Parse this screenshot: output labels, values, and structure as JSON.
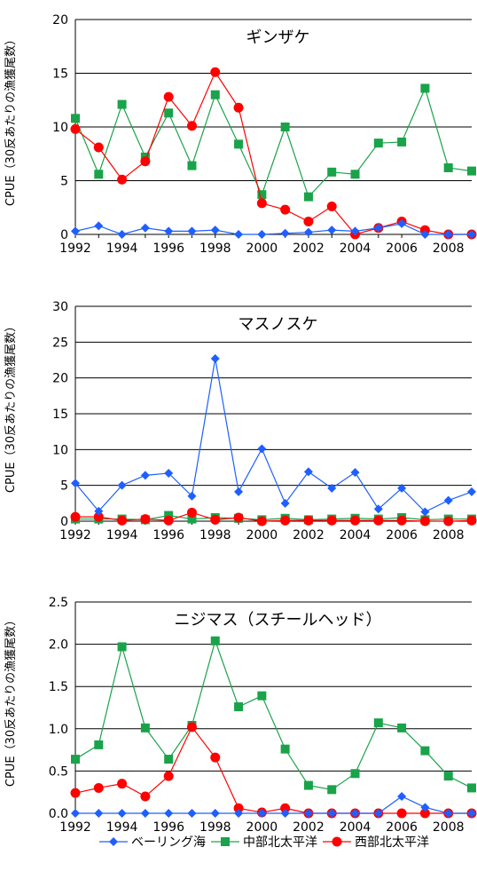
{
  "colors": {
    "bering": "#1f5fff",
    "central": "#1aa34a",
    "western": "#ff0000",
    "grid": "#000000"
  },
  "legend": {
    "items": [
      {
        "label": "ベーリング海",
        "marker": "diamond",
        "series": "bering"
      },
      {
        "label": "中部北太平洋",
        "marker": "square",
        "series": "central"
      },
      {
        "label": "西部北太平洋",
        "marker": "circle",
        "series": "western"
      }
    ]
  },
  "chart_data": [
    {
      "type": "line",
      "title": "ギンザケ",
      "ylabel": "CPUE（30反あたりの漁獲尾数）",
      "x": [
        1992,
        1993,
        1994,
        1995,
        1996,
        1997,
        1998,
        1999,
        2000,
        2001,
        2002,
        2003,
        2004,
        2005,
        2006,
        2007,
        2008,
        2009
      ],
      "xticks": [
        "1992",
        "1994",
        "1996",
        "1998",
        "2000",
        "2002",
        "2004",
        "2006",
        "2008"
      ],
      "ylim": [
        0,
        20
      ],
      "yticks": [
        "0",
        "5",
        "10",
        "15",
        "20"
      ],
      "grid": true,
      "series": [
        {
          "name": "ベーリング海",
          "key": "bering",
          "marker": "diamond",
          "values": [
            0.3,
            0.8,
            0.0,
            0.6,
            0.3,
            0.3,
            0.4,
            0.0,
            0.0,
            0.1,
            0.2,
            0.4,
            0.3,
            0.6,
            1.0,
            0.0,
            0.0,
            0.0
          ]
        },
        {
          "name": "中部北太平洋",
          "key": "central",
          "marker": "square",
          "values": [
            10.8,
            5.6,
            12.1,
            7.2,
            11.3,
            6.4,
            13.0,
            8.4,
            3.7,
            10.0,
            3.5,
            5.8,
            5.6,
            8.5,
            8.6,
            13.6,
            6.2,
            5.9
          ]
        },
        {
          "name": "西部北太平洋",
          "key": "western",
          "marker": "circle",
          "values": [
            9.8,
            8.1,
            5.1,
            6.8,
            12.8,
            10.1,
            15.1,
            11.8,
            2.9,
            2.3,
            1.2,
            2.6,
            0.0,
            0.6,
            1.2,
            0.4,
            0.0,
            0.0
          ]
        }
      ]
    },
    {
      "type": "line",
      "title": "マスノスケ",
      "ylabel": "CPUE（30反あたりの漁獲尾数）",
      "x": [
        1992,
        1993,
        1994,
        1995,
        1996,
        1997,
        1998,
        1999,
        2000,
        2001,
        2002,
        2003,
        2004,
        2005,
        2006,
        2007,
        2008,
        2009
      ],
      "xticks": [
        "1992",
        "1994",
        "1996",
        "1998",
        "2000",
        "2002",
        "2004",
        "2006",
        "2008"
      ],
      "ylim": [
        0,
        30
      ],
      "yticks": [
        "0",
        "5",
        "10",
        "15",
        "20",
        "25",
        "30"
      ],
      "grid": true,
      "series": [
        {
          "name": "ベーリング海",
          "key": "bering",
          "marker": "diamond",
          "values": [
            5.3,
            1.4,
            5.0,
            6.4,
            6.7,
            3.5,
            22.7,
            4.1,
            10.1,
            2.5,
            6.9,
            4.6,
            6.8,
            1.7,
            4.6,
            1.3,
            2.9,
            4.1
          ]
        },
        {
          "name": "中部北太平洋",
          "key": "central",
          "marker": "square",
          "values": [
            0.3,
            0.3,
            0.3,
            0.2,
            0.8,
            0.3,
            0.5,
            0.4,
            0.2,
            0.4,
            0.2,
            0.3,
            0.4,
            0.3,
            0.5,
            0.2,
            0.3,
            0.3
          ]
        },
        {
          "name": "西部北太平洋",
          "key": "western",
          "marker": "circle",
          "values": [
            0.6,
            0.6,
            0.1,
            0.3,
            0.1,
            1.2,
            0.2,
            0.5,
            0.0,
            0.1,
            0.1,
            0.1,
            0.1,
            0.1,
            0.1,
            0.0,
            0.0,
            0.1
          ]
        }
      ]
    },
    {
      "type": "line",
      "title": "ニジマス（スチールヘッド）",
      "ylabel": "CPUE（30反あたりの漁獲尾数）",
      "x": [
        1992,
        1993,
        1994,
        1995,
        1996,
        1997,
        1998,
        1999,
        2000,
        2001,
        2002,
        2003,
        2004,
        2005,
        2006,
        2007,
        2008,
        2009
      ],
      "xticks": [
        "1992",
        "1994",
        "1996",
        "1998",
        "2000",
        "2002",
        "2004",
        "2006",
        "2008"
      ],
      "ylim": [
        0,
        2.5
      ],
      "yticks": [
        "0.0",
        "0.5",
        "1.0",
        "1.5",
        "2.0",
        "2.5"
      ],
      "grid": true,
      "series": [
        {
          "name": "ベーリング海",
          "key": "bering",
          "marker": "diamond",
          "values": [
            0.0,
            0.0,
            0.0,
            0.0,
            0.0,
            0.0,
            0.0,
            0.0,
            0.0,
            0.0,
            0.0,
            0.0,
            0.0,
            0.0,
            0.2,
            0.07,
            0.0,
            0.0
          ]
        },
        {
          "name": "中部北太平洋",
          "key": "central",
          "marker": "square",
          "values": [
            0.64,
            0.81,
            1.97,
            1.01,
            0.64,
            1.04,
            2.04,
            1.26,
            1.39,
            0.76,
            0.33,
            0.28,
            0.47,
            1.07,
            1.01,
            0.74,
            0.44,
            0.3
          ]
        },
        {
          "name": "西部北太平洋",
          "key": "western",
          "marker": "circle",
          "values": [
            0.24,
            0.3,
            0.35,
            0.2,
            0.44,
            1.02,
            0.66,
            0.06,
            0.01,
            0.06,
            0.0,
            0.0,
            0.0,
            0.0,
            0.0,
            0.0,
            0.0,
            0.0
          ]
        }
      ]
    }
  ]
}
